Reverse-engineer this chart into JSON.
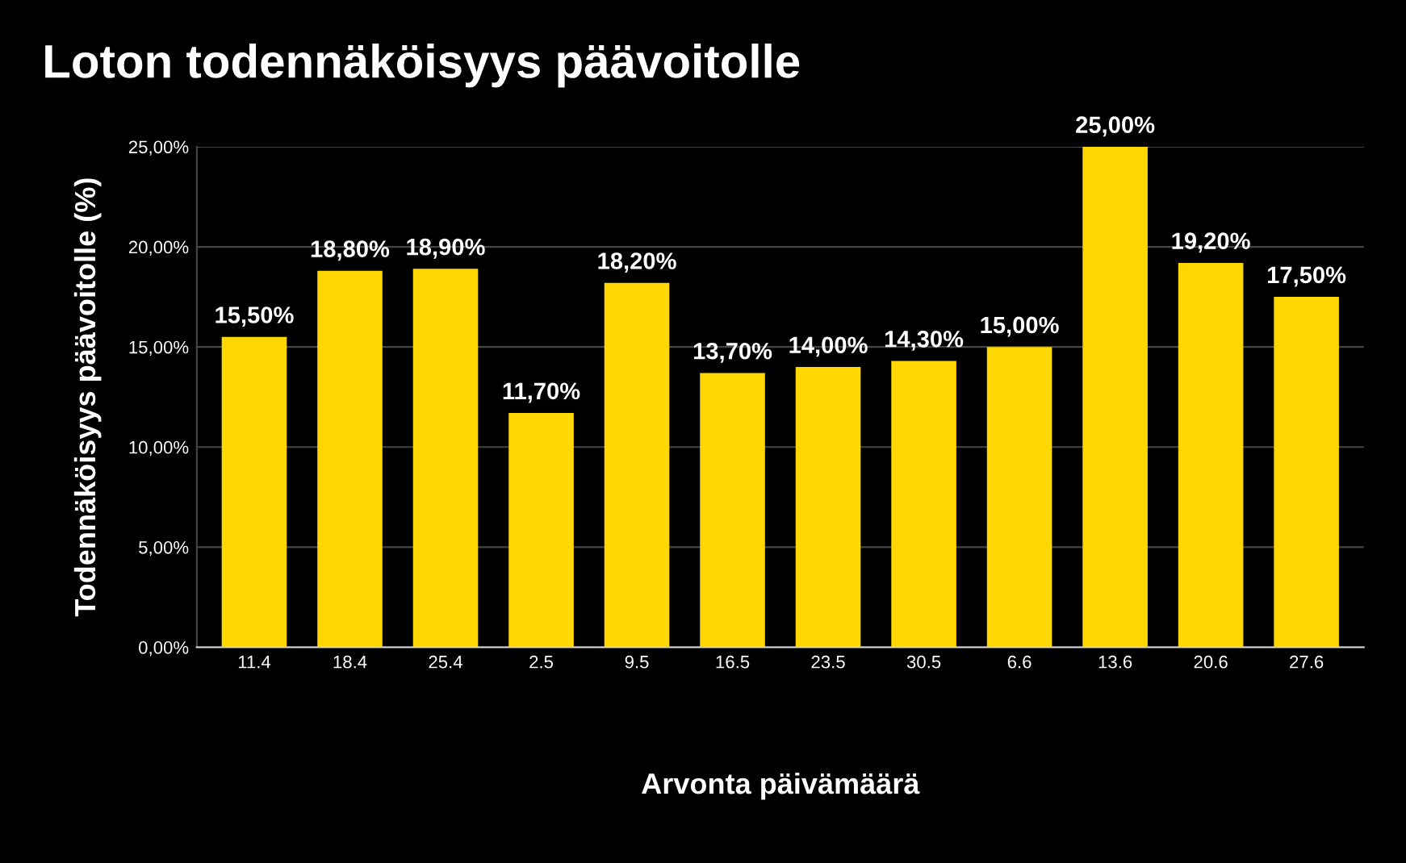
{
  "chart_data": {
    "type": "bar",
    "title": "Loton todennäköisyys päävoitolle",
    "xlabel": "Arvonta päivämäärä",
    "ylabel": "Todennäköisyys päävoitolle (%)",
    "categories": [
      "11.4",
      "18.4",
      "25.4",
      "2.5",
      "9.5",
      "16.5",
      "23.5",
      "30.5",
      "6.6",
      "13.6",
      "20.6",
      "27.6"
    ],
    "values": [
      15.5,
      18.8,
      18.9,
      11.7,
      18.2,
      13.7,
      14.0,
      14.3,
      15.0,
      25.0,
      19.2,
      17.5
    ],
    "value_labels": [
      "15,50%",
      "18,80%",
      "18,90%",
      "11,70%",
      "18,20%",
      "13,70%",
      "14,00%",
      "14,30%",
      "15,00%",
      "25,00%",
      "19,20%",
      "17,50%"
    ],
    "color": "#ffd700",
    "ylim": [
      0,
      25
    ],
    "yticks": [
      {
        "value": 0,
        "label": "0,00%"
      },
      {
        "value": 5,
        "label": "5,00%"
      },
      {
        "value": 10,
        "label": "10,00%"
      },
      {
        "value": 15,
        "label": "15,00%"
      },
      {
        "value": 20,
        "label": "20,00%"
      },
      {
        "value": 25,
        "label": "25,00%"
      }
    ],
    "grid": "y"
  }
}
